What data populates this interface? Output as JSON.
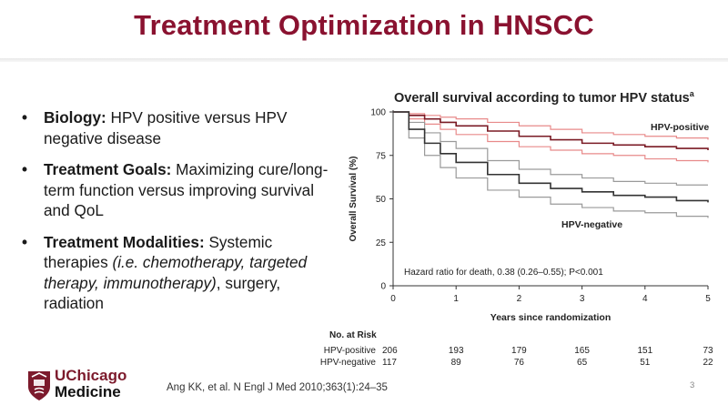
{
  "slide": {
    "title": "Treatment Optimization in HNSCC",
    "page_number": "3",
    "citation": "Ang KK, et al. N Engl J Med 2010;363(1):24–35",
    "logo": {
      "line1": "UChicago",
      "line2": "Medicine"
    }
  },
  "bullets": [
    {
      "bold": "Biology:",
      "text": " HPV positive versus HPV negative disease"
    },
    {
      "bold": "Treatment Goals:",
      "text": " Maximizing cure/long-term function versus improving survival and QoL"
    },
    {
      "bold": "Treatment Modalities:",
      "text": " Systemic therapies ",
      "italic": "(i.e. chemotherapy, targeted therapy, immunotherapy)",
      "tail": ", surgery, radiation"
    }
  ],
  "chart": {
    "title": "Overall survival according to tumor HPV status",
    "title_sup": "a"
  },
  "chart_data": {
    "type": "line",
    "xlabel": "Years since randomization",
    "ylabel": "Overall Survival (%)",
    "xlim": [
      0,
      5
    ],
    "ylim": [
      0,
      100
    ],
    "xticks": [
      "0",
      "1",
      "2",
      "3",
      "4",
      "5"
    ],
    "yticks": [
      "0",
      "25",
      "50",
      "75",
      "100"
    ],
    "annotation": "Hazard ratio for death, 0.38 (0.26–0.55); P<0.001",
    "series": [
      {
        "name": "HPV-positive",
        "color": "#7a1a24",
        "ci_color": "#e88a8a",
        "x": [
          0,
          0.25,
          0.5,
          0.75,
          1,
          1.5,
          2,
          2.5,
          3,
          3.5,
          4,
          4.5,
          5
        ],
        "values": [
          100,
          98,
          96,
          94,
          92,
          89,
          86,
          84,
          82,
          81,
          80,
          79,
          78
        ],
        "ci_upper": [
          100,
          99,
          98,
          97,
          96,
          94,
          92,
          90,
          88,
          87,
          86,
          85,
          84
        ],
        "ci_lower": [
          100,
          96,
          93,
          90,
          87,
          83,
          80,
          78,
          76,
          75,
          73,
          72,
          71
        ]
      },
      {
        "name": "HPV-negative",
        "color": "#333333",
        "ci_color": "#9a9a9a",
        "x": [
          0,
          0.25,
          0.5,
          0.75,
          1,
          1.5,
          2,
          2.5,
          3,
          3.5,
          4,
          4.5,
          5
        ],
        "values": [
          100,
          90,
          82,
          76,
          71,
          64,
          59,
          56,
          54,
          52,
          51,
          49,
          48
        ],
        "ci_upper": [
          100,
          94,
          88,
          83,
          79,
          72,
          67,
          64,
          62,
          60,
          59,
          58,
          58
        ],
        "ci_lower": [
          100,
          85,
          75,
          68,
          62,
          55,
          51,
          47,
          45,
          43,
          42,
          40,
          39
        ]
      }
    ],
    "risk_table": {
      "header": "No. at Risk",
      "rows": [
        {
          "label": "HPV-positive",
          "values": [
            "206",
            "193",
            "179",
            "165",
            "151",
            "73"
          ]
        },
        {
          "label": "HPV-negative",
          "values": [
            "117",
            "89",
            "76",
            "65",
            "51",
            "22"
          ]
        }
      ]
    }
  },
  "colors": {
    "title": "#8a1230",
    "brand": "#7c1a2c"
  }
}
